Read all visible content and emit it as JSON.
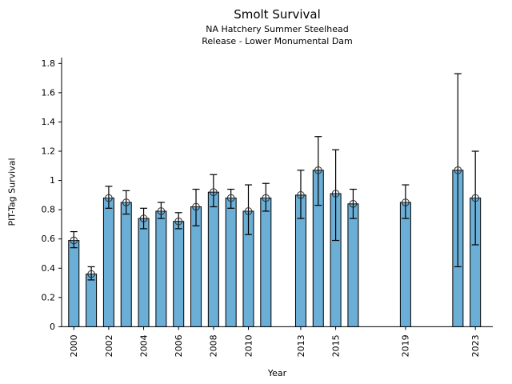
{
  "chart_data": {
    "type": "bar",
    "title": "Smolt Survival",
    "subtitle1": "NA Hatchery Summer Steelhead",
    "subtitle2": "Release - Lower Monumental Dam",
    "xlabel": "Year",
    "ylabel": "PIT-Tag Survival",
    "grid": false,
    "legend": "none",
    "xlim": [
      1999.3,
      2024.0
    ],
    "ylim": [
      0,
      1.84
    ],
    "x_tick_years": [
      2000,
      2002,
      2004,
      2006,
      2008,
      2010,
      2013,
      2015,
      2019,
      2023
    ],
    "x_tick_labels": [
      "2000",
      "2002",
      "2004",
      "2006",
      "2008",
      "2010",
      "2013",
      "2015",
      "2019",
      "2023"
    ],
    "y_ticks": [
      0,
      0.2,
      0.4,
      0.6,
      0.8,
      1,
      1.2,
      1.4,
      1.6,
      1.8
    ],
    "y_tick_labels": [
      "0",
      "0.2",
      "0.4",
      "0.6",
      "0.8",
      "1",
      "1.2",
      "1.4",
      "1.6",
      "1.8"
    ],
    "bar_fill": "#6baed6",
    "bar_edge": "#000000",
    "error_color": "#000000",
    "marker": "open-circle-plus",
    "series": [
      {
        "year": 2000,
        "survival": 0.59,
        "ci_low": 0.54,
        "ci_high": 0.65
      },
      {
        "year": 2001,
        "survival": 0.36,
        "ci_low": 0.32,
        "ci_high": 0.41
      },
      {
        "year": 2002,
        "survival": 0.88,
        "ci_low": 0.81,
        "ci_high": 0.96
      },
      {
        "year": 2003,
        "survival": 0.85,
        "ci_low": 0.77,
        "ci_high": 0.93
      },
      {
        "year": 2004,
        "survival": 0.74,
        "ci_low": 0.67,
        "ci_high": 0.81
      },
      {
        "year": 2005,
        "survival": 0.79,
        "ci_low": 0.74,
        "ci_high": 0.85
      },
      {
        "year": 2006,
        "survival": 0.72,
        "ci_low": 0.67,
        "ci_high": 0.78
      },
      {
        "year": 2007,
        "survival": 0.82,
        "ci_low": 0.69,
        "ci_high": 0.94
      },
      {
        "year": 2008,
        "survival": 0.92,
        "ci_low": 0.82,
        "ci_high": 1.04
      },
      {
        "year": 2009,
        "survival": 0.88,
        "ci_low": 0.81,
        "ci_high": 0.94
      },
      {
        "year": 2010,
        "survival": 0.79,
        "ci_low": 0.63,
        "ci_high": 0.97
      },
      {
        "year": 2011,
        "survival": 0.88,
        "ci_low": 0.79,
        "ci_high": 0.98
      },
      {
        "year": 2013,
        "survival": 0.9,
        "ci_low": 0.74,
        "ci_high": 1.07
      },
      {
        "year": 2014,
        "survival": 1.07,
        "ci_low": 0.83,
        "ci_high": 1.3
      },
      {
        "year": 2015,
        "survival": 0.91,
        "ci_low": 0.59,
        "ci_high": 1.21
      },
      {
        "year": 2016,
        "survival": 0.84,
        "ci_low": 0.74,
        "ci_high": 0.94
      },
      {
        "year": 2019,
        "survival": 0.85,
        "ci_low": 0.74,
        "ci_high": 0.97
      },
      {
        "year": 2022,
        "survival": 1.07,
        "ci_low": 0.41,
        "ci_high": 1.73
      },
      {
        "year": 2023,
        "survival": 0.88,
        "ci_low": 0.56,
        "ci_high": 1.2
      }
    ]
  }
}
